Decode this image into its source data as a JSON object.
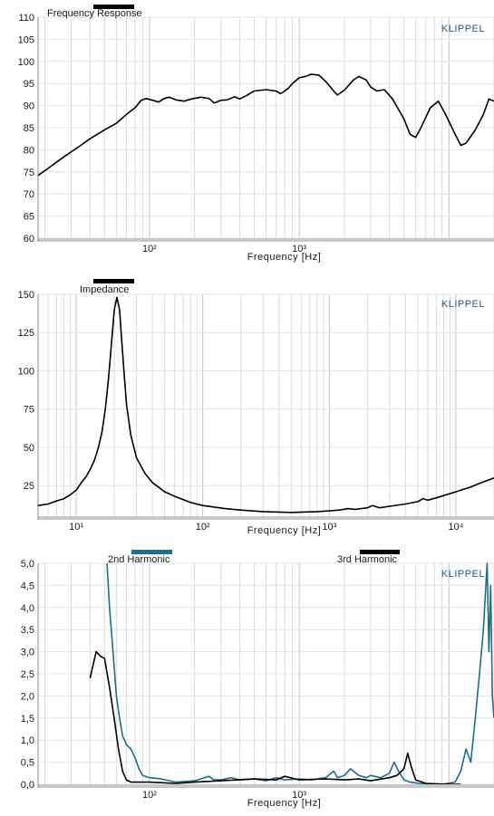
{
  "brand_color": "#1f5a8a",
  "chart_data": [
    {
      "type": "line",
      "title": "Frequency Response",
      "xlabel": "Frequency  [Hz]",
      "ylabel": "",
      "x_scale": "log",
      "xlim": [
        18,
        20000
      ],
      "ylim": [
        60,
        110
      ],
      "y_ticks": [
        "60",
        "65",
        "70",
        "75",
        "80",
        "85",
        "90",
        "95",
        "100",
        "105",
        "110"
      ],
      "x_ticks": [
        {
          "value": 100,
          "label": "10²"
        },
        {
          "value": 1000,
          "label": "10³"
        }
      ],
      "brand": "KLIPPEL",
      "legend": "top-left",
      "grid": true,
      "series": [
        {
          "color": "#000000",
          "points": [
            [
              18,
              74.2
            ],
            [
              22,
              76.3
            ],
            [
              27,
              78.5
            ],
            [
              33,
              80.5
            ],
            [
              40,
              82.5
            ],
            [
              50,
              84.5
            ],
            [
              60,
              86
            ],
            [
              70,
              88
            ],
            [
              80,
              89.5
            ],
            [
              88,
              91.2
            ],
            [
              95,
              91.6
            ],
            [
              105,
              91.2
            ],
            [
              115,
              90.8
            ],
            [
              125,
              91.6
            ],
            [
              135,
              91.9
            ],
            [
              150,
              91.3
            ],
            [
              170,
              91.0
            ],
            [
              190,
              91.5
            ],
            [
              220,
              91.9
            ],
            [
              250,
              91.6
            ],
            [
              270,
              90.6
            ],
            [
              300,
              91.2
            ],
            [
              330,
              91.3
            ],
            [
              370,
              92.0
            ],
            [
              400,
              91.5
            ],
            [
              450,
              92.4
            ],
            [
              500,
              93.3
            ],
            [
              600,
              93.6
            ],
            [
              700,
              93.3
            ],
            [
              750,
              92.7
            ],
            [
              800,
              93.3
            ],
            [
              850,
              94.0
            ],
            [
              900,
              95.0
            ],
            [
              1000,
              96.3
            ],
            [
              1100,
              96.6
            ],
            [
              1200,
              97.1
            ],
            [
              1350,
              96.9
            ],
            [
              1500,
              95.5
            ],
            [
              1700,
              93.3
            ],
            [
              1800,
              92.4
            ],
            [
              2000,
              93.5
            ],
            [
              2300,
              95.8
            ],
            [
              2500,
              96.6
            ],
            [
              2800,
              95.8
            ],
            [
              3000,
              94.2
            ],
            [
              3300,
              93.3
            ],
            [
              3700,
              93.6
            ],
            [
              4200,
              91.5
            ],
            [
              5000,
              87.0
            ],
            [
              5500,
              83.5
            ],
            [
              6000,
              82.8
            ],
            [
              6500,
              85.0
            ],
            [
              7500,
              89.5
            ],
            [
              8500,
              91.0
            ],
            [
              9500,
              88.0
            ],
            [
              11000,
              83.5
            ],
            [
              12000,
              81.0
            ],
            [
              13000,
              81.5
            ],
            [
              15000,
              84.5
            ],
            [
              17000,
              88.0
            ],
            [
              18500,
              91.5
            ],
            [
              20000,
              91.0
            ]
          ]
        }
      ]
    },
    {
      "type": "line",
      "title": "Impedance",
      "xlabel": "Frequency  [Hz]",
      "ylabel": "",
      "x_scale": "log",
      "xlim": [
        5,
        20000
      ],
      "ylim": [
        5,
        150
      ],
      "y_ticks": [
        "25",
        "50",
        "75",
        "100",
        "125",
        "150"
      ],
      "x_ticks": [
        {
          "value": 10,
          "label": "10¹"
        },
        {
          "value": 100,
          "label": "10²"
        },
        {
          "value": 1000,
          "label": "10³"
        },
        {
          "value": 10000,
          "label": "10⁴"
        }
      ],
      "brand": "KLIPPEL",
      "legend": "top-left",
      "grid": true,
      "series": [
        {
          "color": "#000000",
          "points": [
            [
              5,
              12
            ],
            [
              6,
              13
            ],
            [
              7,
              15
            ],
            [
              8,
              16.5
            ],
            [
              9,
              19
            ],
            [
              10,
              22
            ],
            [
              11,
              27
            ],
            [
              12,
              31
            ],
            [
              13,
              36
            ],
            [
              14,
              42
            ],
            [
              15,
              50
            ],
            [
              16,
              60
            ],
            [
              17,
              75
            ],
            [
              18,
              95
            ],
            [
              19,
              118
            ],
            [
              20,
              140
            ],
            [
              21,
              148
            ],
            [
              22,
              140
            ],
            [
              23,
              118
            ],
            [
              24,
              97
            ],
            [
              25,
              78
            ],
            [
              27,
              58
            ],
            [
              30,
              43
            ],
            [
              35,
              33
            ],
            [
              40,
              27
            ],
            [
              50,
              21
            ],
            [
              60,
              18
            ],
            [
              80,
              14
            ],
            [
              100,
              12
            ],
            [
              150,
              10
            ],
            [
              200,
              9
            ],
            [
              300,
              8
            ],
            [
              500,
              7.5
            ],
            [
              800,
              8
            ],
            [
              1000,
              8.5
            ],
            [
              1200,
              9
            ],
            [
              1400,
              10
            ],
            [
              1600,
              9.5
            ],
            [
              2000,
              10.5
            ],
            [
              2200,
              12
            ],
            [
              2500,
              10.5
            ],
            [
              3000,
              11.5
            ],
            [
              4000,
              13
            ],
            [
              5000,
              14.5
            ],
            [
              5500,
              16.5
            ],
            [
              6000,
              15.5
            ],
            [
              7000,
              17
            ],
            [
              8000,
              18.5
            ],
            [
              10000,
              21
            ],
            [
              13000,
              24
            ],
            [
              16000,
              27
            ],
            [
              20000,
              30
            ]
          ]
        }
      ]
    },
    {
      "type": "line",
      "title": "",
      "xlabel": "Frequency  [Hz]",
      "ylabel": "",
      "x_scale": "log",
      "xlim": [
        18,
        20000
      ],
      "ylim": [
        0,
        5
      ],
      "y_ticks": [
        "0,0",
        "0,5",
        "1,0",
        "1,5",
        "2,0",
        "2,5",
        "3,0",
        "3,5",
        "4,0",
        "4,5",
        "5,0"
      ],
      "x_ticks": [
        {
          "value": 100,
          "label": "10²"
        },
        {
          "value": 1000,
          "label": "10³"
        }
      ],
      "brand": "KLIPPEL",
      "legend": "top",
      "grid": true,
      "series": [
        {
          "name": "2nd Harmonic",
          "color": "#1c6f8c",
          "points": [
            [
              52,
              5.0
            ],
            [
              54,
              4.0
            ],
            [
              57,
              3.0
            ],
            [
              60,
              2.0
            ],
            [
              63,
              1.5
            ],
            [
              66,
              1.1
            ],
            [
              70,
              0.9
            ],
            [
              75,
              0.8
            ],
            [
              80,
              0.6
            ],
            [
              85,
              0.35
            ],
            [
              90,
              0.2
            ],
            [
              100,
              0.15
            ],
            [
              120,
              0.12
            ],
            [
              150,
              0.05
            ],
            [
              200,
              0.08
            ],
            [
              250,
              0.18
            ],
            [
              270,
              0.1
            ],
            [
              300,
              0.1
            ],
            [
              350,
              0.15
            ],
            [
              400,
              0.1
            ],
            [
              500,
              0.12
            ],
            [
              600,
              0.08
            ],
            [
              700,
              0.15
            ],
            [
              800,
              0.1
            ],
            [
              1000,
              0.12
            ],
            [
              1200,
              0.1
            ],
            [
              1500,
              0.15
            ],
            [
              1700,
              0.3
            ],
            [
              1800,
              0.15
            ],
            [
              2000,
              0.2
            ],
            [
              2200,
              0.35
            ],
            [
              2500,
              0.2
            ],
            [
              2800,
              0.15
            ],
            [
              3000,
              0.2
            ],
            [
              3500,
              0.15
            ],
            [
              4000,
              0.25
            ],
            [
              4300,
              0.5
            ],
            [
              4600,
              0.3
            ],
            [
              5000,
              0.1
            ],
            [
              5500,
              0.05
            ],
            [
              7000,
              0.0
            ],
            [
              9000,
              0.0
            ],
            [
              11000,
              0.05
            ],
            [
              12000,
              0.3
            ],
            [
              13000,
              0.8
            ],
            [
              14000,
              0.5
            ],
            [
              15000,
              1.5
            ],
            [
              16000,
              2.5
            ],
            [
              17000,
              3.5
            ],
            [
              18000,
              5.0
            ],
            [
              18500,
              3.0
            ],
            [
              19000,
              4.5
            ],
            [
              19500,
              2.0
            ],
            [
              20000,
              1.5
            ]
          ]
        },
        {
          "name": "3rd Harmonic",
          "color": "#000000",
          "points": [
            [
              40,
              2.4
            ],
            [
              44,
              3.0
            ],
            [
              47,
              2.9
            ],
            [
              50,
              2.85
            ],
            [
              54,
              2.2
            ],
            [
              58,
              1.5
            ],
            [
              62,
              0.8
            ],
            [
              66,
              0.3
            ],
            [
              70,
              0.1
            ],
            [
              75,
              0.05
            ],
            [
              80,
              0.05
            ],
            [
              100,
              0.05
            ],
            [
              150,
              0.02
            ],
            [
              200,
              0.05
            ],
            [
              300,
              0.08
            ],
            [
              500,
              0.12
            ],
            [
              700,
              0.1
            ],
            [
              800,
              0.18
            ],
            [
              1000,
              0.1
            ],
            [
              1500,
              0.12
            ],
            [
              2000,
              0.1
            ],
            [
              2500,
              0.12
            ],
            [
              3000,
              0.08
            ],
            [
              4000,
              0.15
            ],
            [
              4500,
              0.2
            ],
            [
              5000,
              0.35
            ],
            [
              5300,
              0.7
            ],
            [
              5600,
              0.4
            ],
            [
              6000,
              0.1
            ],
            [
              7000,
              0.02
            ],
            [
              10000,
              0.0
            ],
            [
              12000,
              0.0
            ]
          ]
        }
      ]
    }
  ]
}
